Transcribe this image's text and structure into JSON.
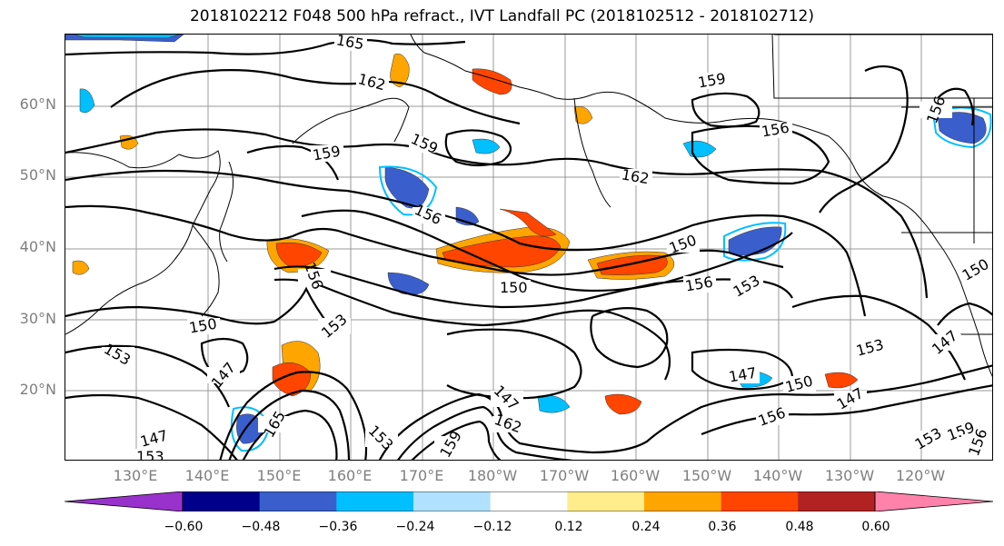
{
  "title": "2018102212 F048 500 hPa refract., IVT Landfall PC (2018102512 - 2018102712)",
  "lat_labels": [
    "60°N",
    "50°N",
    "40°N",
    "30°N",
    "20°N"
  ],
  "lon_labels": [
    "130°E",
    "140°E",
    "150°E",
    "160°E",
    "170°E",
    "180°W",
    "170°W",
    "160°W",
    "150°W",
    "140°W",
    "130°W",
    "120°W"
  ],
  "contour_labels": [
    "165",
    "162",
    "159",
    "159",
    "156",
    "150",
    "150",
    "156",
    "153",
    "159",
    "156",
    "162",
    "156",
    "150",
    "153",
    "147",
    "153",
    "153",
    "147",
    "150",
    "147",
    "156",
    "147",
    "153",
    "147",
    "153",
    "165",
    "162",
    "147",
    "153",
    "159",
    "156",
    "150",
    "159",
    "156"
  ],
  "colorbar": {
    "colors": [
      "#9932cc",
      "#00008b",
      "#3a5fcd",
      "#00bfff",
      "#b0e2ff",
      "#ffffff",
      "#ffec8b",
      "#ffa500",
      "#ff4500",
      "#b22222",
      "#ff82ab"
    ],
    "tick_labels": [
      "−0.60",
      "−0.48",
      "−0.36",
      "−0.24",
      "−0.12",
      "0.12",
      "0.24",
      "0.36",
      "0.48",
      "0.60"
    ]
  }
}
